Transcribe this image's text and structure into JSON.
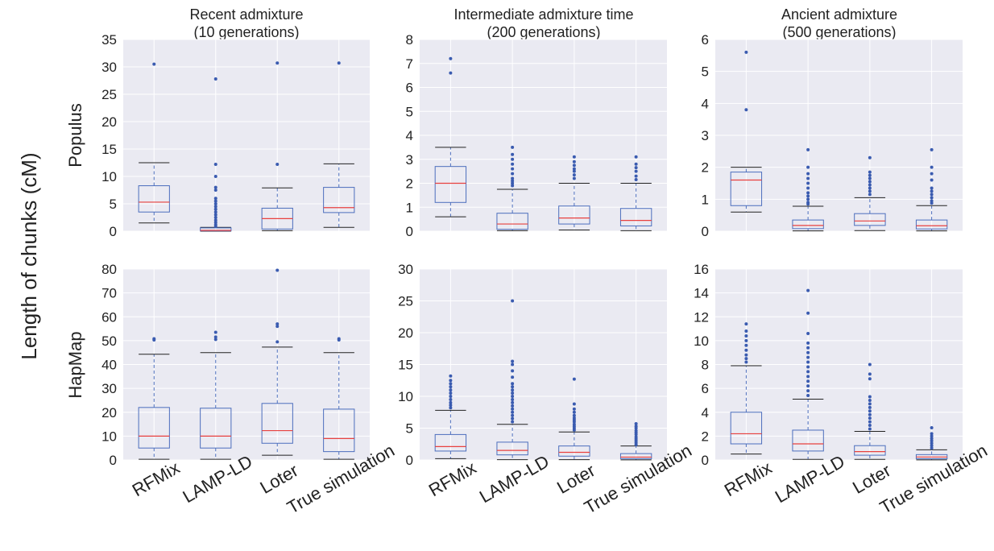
{
  "figure": {
    "ylabel": "Length of chunks (cM)",
    "column_titles": [
      [
        "Recent admixture",
        "(10 generations)"
      ],
      [
        "Intermediate admixture time",
        "(200 generations)"
      ],
      [
        "Ancient admixture",
        "(500 generations)"
      ]
    ],
    "row_labels": [
      "Populus",
      "HapMap"
    ],
    "categories": [
      "RFMix",
      "LAMP-LD",
      "Loter",
      "True simulation"
    ],
    "colors": {
      "panel_background": "#eaeaf2",
      "grid": "#ffffff",
      "box": "#4c6ebd",
      "median": "#e8413f",
      "whisker": "#4c6ebd",
      "cap": "#222222",
      "outlier": "#3a5bb0"
    }
  },
  "chart_data": [
    {
      "type": "box",
      "row": "Populus",
      "column": "Recent admixture (10 generations)",
      "ylim": [
        0,
        35
      ],
      "yticks": [
        0,
        5,
        10,
        15,
        20,
        25,
        30,
        35
      ],
      "grid": true,
      "boxes": [
        {
          "category": "RFMix",
          "whisker_low": 1.5,
          "q1": 3.5,
          "median": 5.3,
          "q3": 8.3,
          "whisker_high": 12.5,
          "outliers": [
            30.5
          ]
        },
        {
          "category": "LAMP-LD",
          "whisker_low": 0,
          "q1": 0.05,
          "median": 0.15,
          "q3": 0.6,
          "whisker_high": 0.7,
          "outliers": [
            0.9,
            1.2,
            1.6,
            2.0,
            2.5,
            3.0,
            3.5,
            4.0,
            4.5,
            5.0,
            5.5,
            6.0,
            7.5,
            8.0,
            10.0,
            12.2,
            27.8
          ]
        },
        {
          "category": "Loter",
          "whisker_low": 0.1,
          "q1": 0.4,
          "median": 2.3,
          "q3": 4.2,
          "whisker_high": 7.9,
          "outliers": [
            12.2,
            30.7
          ]
        },
        {
          "category": "True simulation",
          "whisker_low": 0.7,
          "q1": 3.4,
          "median": 4.3,
          "q3": 8.0,
          "whisker_high": 12.3,
          "outliers": [
            30.7
          ]
        }
      ]
    },
    {
      "type": "box",
      "row": "Populus",
      "column": "Intermediate admixture time (200 generations)",
      "ylim": [
        0,
        8
      ],
      "yticks": [
        0,
        1,
        2,
        3,
        4,
        5,
        6,
        7,
        8
      ],
      "grid": true,
      "boxes": [
        {
          "category": "RFMix",
          "whisker_low": 0.6,
          "q1": 1.2,
          "median": 2.0,
          "q3": 2.7,
          "whisker_high": 3.5,
          "outliers": [
            6.6,
            7.2
          ]
        },
        {
          "category": "LAMP-LD",
          "whisker_low": 0.02,
          "q1": 0.08,
          "median": 0.3,
          "q3": 0.75,
          "whisker_high": 1.75,
          "outliers": [
            1.9,
            2.0,
            2.1,
            2.2,
            2.4,
            2.6,
            2.8,
            3.0,
            3.2,
            3.5
          ]
        },
        {
          "category": "Loter",
          "whisker_low": 0.05,
          "q1": 0.3,
          "median": 0.55,
          "q3": 1.05,
          "whisker_high": 2.0,
          "outliers": [
            2.2,
            2.35,
            2.5,
            2.6,
            2.75,
            2.9,
            3.1
          ]
        },
        {
          "category": "True simulation",
          "whisker_low": 0.02,
          "q1": 0.22,
          "median": 0.45,
          "q3": 0.95,
          "whisker_high": 2.0,
          "outliers": [
            2.15,
            2.3,
            2.5,
            2.65,
            2.8,
            3.1
          ]
        }
      ]
    },
    {
      "type": "box",
      "row": "Populus",
      "column": "Ancient admixture (500 generations)",
      "ylim": [
        0,
        6
      ],
      "yticks": [
        0,
        1,
        2,
        3,
        4,
        5,
        6
      ],
      "grid": true,
      "boxes": [
        {
          "category": "RFMix",
          "whisker_low": 0.6,
          "q1": 0.8,
          "median": 1.6,
          "q3": 1.85,
          "whisker_high": 2.0,
          "outliers": [
            3.8,
            5.6
          ]
        },
        {
          "category": "LAMP-LD",
          "whisker_low": 0.01,
          "q1": 0.08,
          "median": 0.18,
          "q3": 0.35,
          "whisker_high": 0.78,
          "outliers": [
            0.85,
            0.9,
            1.0,
            1.1,
            1.2,
            1.35,
            1.5,
            1.65,
            1.8,
            2.0,
            2.55
          ]
        },
        {
          "category": "Loter",
          "whisker_low": 0.02,
          "q1": 0.18,
          "median": 0.32,
          "q3": 0.55,
          "whisker_high": 1.05,
          "outliers": [
            1.15,
            1.25,
            1.35,
            1.45,
            1.55,
            1.65,
            1.75,
            1.85,
            2.3
          ]
        },
        {
          "category": "True simulation",
          "whisker_low": 0.01,
          "q1": 0.07,
          "median": 0.17,
          "q3": 0.35,
          "whisker_high": 0.8,
          "outliers": [
            0.88,
            0.95,
            1.05,
            1.15,
            1.25,
            1.35,
            1.6,
            1.8,
            2.0,
            2.55
          ]
        }
      ]
    },
    {
      "type": "box",
      "row": "HapMap",
      "column": "Recent admixture (10 generations)",
      "ylim": [
        0,
        80
      ],
      "yticks": [
        0,
        10,
        20,
        30,
        40,
        50,
        60,
        70,
        80
      ],
      "grid": true,
      "boxes": [
        {
          "category": "RFMix",
          "whisker_low": 0.3,
          "q1": 5.0,
          "median": 10.0,
          "q3": 22.0,
          "whisker_high": 44.3,
          "outliers": [
            50.3,
            50.8
          ]
        },
        {
          "category": "LAMP-LD",
          "whisker_low": 0.3,
          "q1": 5.0,
          "median": 10.0,
          "q3": 21.7,
          "whisker_high": 45.0,
          "outliers": [
            50.5,
            51.5,
            53.5
          ]
        },
        {
          "category": "Loter",
          "whisker_low": 2.0,
          "q1": 7.0,
          "median": 12.3,
          "q3": 23.7,
          "whisker_high": 47.3,
          "outliers": [
            49.5,
            56.0,
            57.0,
            79.5
          ]
        },
        {
          "category": "True simulation",
          "whisker_low": 0.3,
          "q1": 3.5,
          "median": 9.0,
          "q3": 21.3,
          "whisker_high": 45.0,
          "outliers": [
            50.3,
            50.8
          ]
        }
      ]
    },
    {
      "type": "box",
      "row": "HapMap",
      "column": "Intermediate admixture time (200 generations)",
      "ylim": [
        0,
        30
      ],
      "yticks": [
        0,
        5,
        10,
        15,
        20,
        25,
        30
      ],
      "grid": true,
      "boxes": [
        {
          "category": "RFMix",
          "whisker_low": 0.2,
          "q1": 1.4,
          "median": 2.1,
          "q3": 4.0,
          "whisker_high": 7.8,
          "outliers": [
            8.2,
            8.6,
            9.0,
            9.5,
            10.0,
            10.5,
            11.0,
            11.5,
            12.0,
            12.5,
            13.2
          ]
        },
        {
          "category": "LAMP-LD",
          "whisker_low": 0.05,
          "q1": 0.8,
          "median": 1.5,
          "q3": 2.8,
          "whisker_high": 5.6,
          "outliers": [
            6.0,
            6.5,
            7.0,
            7.5,
            8.0,
            8.5,
            9.0,
            9.5,
            10.0,
            10.5,
            11.0,
            11.5,
            12.0,
            13.0,
            14.0,
            15.0,
            15.5,
            25.0
          ]
        },
        {
          "category": "Loter",
          "whisker_low": 0.05,
          "q1": 0.6,
          "median": 1.2,
          "q3": 2.2,
          "whisker_high": 4.4,
          "outliers": [
            4.7,
            5.0,
            5.3,
            5.6,
            6.0,
            6.3,
            6.6,
            7.0,
            7.5,
            8.0,
            8.8,
            12.7
          ]
        },
        {
          "category": "True simulation",
          "whisker_low": 0.01,
          "q1": 0.2,
          "median": 0.45,
          "q3": 1.0,
          "whisker_high": 2.2,
          "outliers": [
            2.4,
            2.7,
            3.0,
            3.3,
            3.6,
            4.0,
            4.3,
            4.6,
            5.0,
            5.3,
            5.7
          ]
        }
      ]
    },
    {
      "type": "box",
      "row": "HapMap",
      "column": "Ancient admixture (500 generations)",
      "ylim": [
        0,
        16
      ],
      "yticks": [
        0,
        2,
        4,
        6,
        8,
        10,
        12,
        14,
        16
      ],
      "grid": true,
      "boxes": [
        {
          "category": "RFMix",
          "whisker_low": 0.5,
          "q1": 1.35,
          "median": 2.2,
          "q3": 4.0,
          "whisker_high": 7.9,
          "outliers": [
            8.2,
            8.5,
            8.8,
            9.2,
            9.6,
            10.0,
            10.4,
            10.8,
            11.4
          ]
        },
        {
          "category": "LAMP-LD",
          "whisker_low": 0.05,
          "q1": 0.75,
          "median": 1.35,
          "q3": 2.5,
          "whisker_high": 5.1,
          "outliers": [
            5.4,
            5.8,
            6.2,
            6.6,
            7.0,
            7.4,
            7.8,
            8.2,
            8.6,
            9.0,
            9.4,
            9.8,
            10.6,
            12.3,
            14.2
          ]
        },
        {
          "category": "Loter",
          "whisker_low": 0.05,
          "q1": 0.4,
          "median": 0.7,
          "q3": 1.2,
          "whisker_high": 2.4,
          "outliers": [
            2.6,
            2.9,
            3.2,
            3.5,
            3.8,
            4.1,
            4.4,
            4.7,
            5.0,
            5.3,
            6.8,
            7.2,
            8.0
          ]
        },
        {
          "category": "True simulation",
          "whisker_low": 0.01,
          "q1": 0.1,
          "median": 0.25,
          "q3": 0.45,
          "whisker_high": 0.85,
          "outliers": [
            1.0,
            1.2,
            1.4,
            1.6,
            1.8,
            2.0,
            2.2,
            2.7
          ]
        }
      ]
    }
  ]
}
